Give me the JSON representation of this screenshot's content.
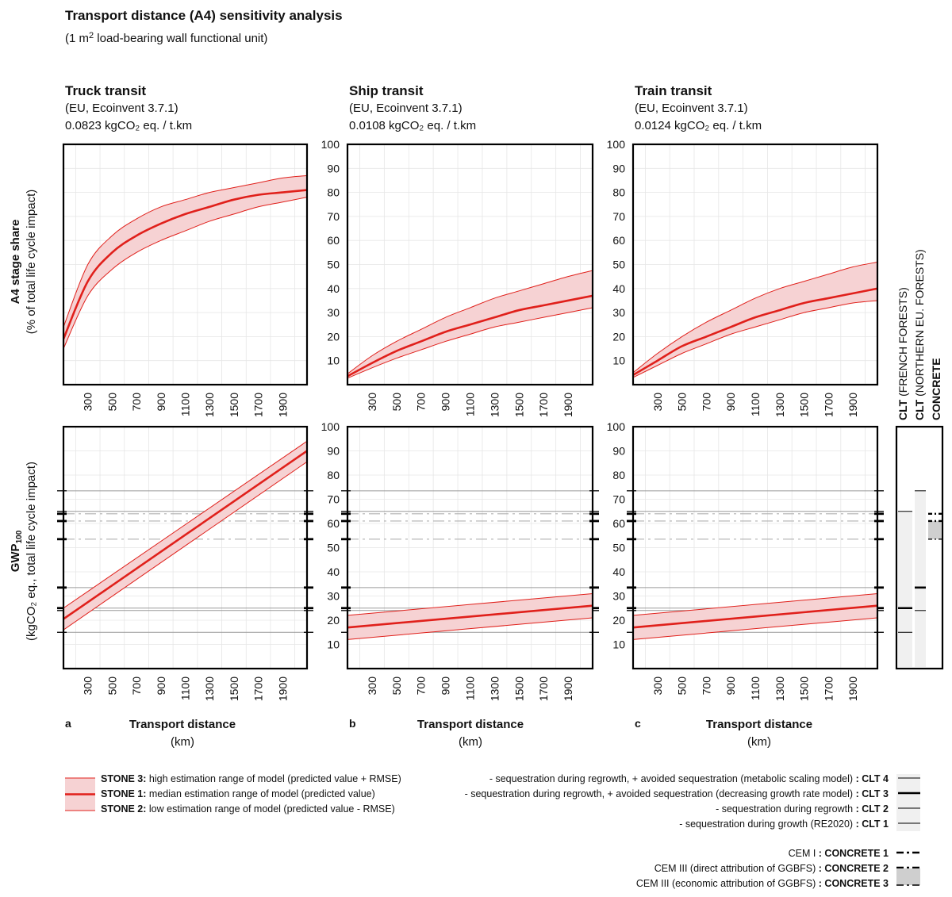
{
  "figure": {
    "title": "Transport distance (A4) sensitivity analysis",
    "subtitle_pre": "(1 m",
    "subtitle_sup": "2",
    "subtitle_post": " load-bearing wall functional unit)"
  },
  "columns": [
    {
      "title": "Truck transit",
      "source": "(EU, Ecoinvent 3.7.1)",
      "factor": "0.0823 kgCO₂ eq. / t.km",
      "letter": "a"
    },
    {
      "title": "Ship transit",
      "source": "(EU, Ecoinvent 3.7.1)",
      "factor": "0.0108 kgCO₂ eq. / t.km",
      "letter": "b"
    },
    {
      "title": "Train transit",
      "source": "(EU, Ecoinvent 3.7.1)",
      "factor": "0.0124 kgCO₂ eq. / t.km",
      "letter": "c"
    }
  ],
  "axes": {
    "row1_ylabel": "A4 stage share",
    "row1_yunit": "(% of total life cycle impact)",
    "row2_ylabel_main": "GWP",
    "row2_ylabel_sub": "100",
    "row2_yunit": "(kgCO₂ eq., total life cycle impact)",
    "xlabel": "Transport distance",
    "xunit": "(km)"
  },
  "chart_data": [
    {
      "panel": "a-top",
      "type": "area",
      "title": "Truck transit",
      "xlabel": "Transport distance (km)",
      "ylabel": "A4 stage share (% of total life cycle impact)",
      "xlim": [
        100,
        2100
      ],
      "ylim": [
        0,
        100
      ],
      "xticks": [
        300,
        500,
        700,
        900,
        1100,
        1300,
        1500,
        1700,
        1900
      ],
      "yticks": [],
      "x": [
        100,
        300,
        500,
        700,
        900,
        1100,
        1300,
        1500,
        1700,
        1900,
        2100
      ],
      "series": [
        {
          "name": "STONE 3",
          "values": [
            24,
            50,
            62,
            69,
            74,
            77,
            80,
            82,
            84,
            86,
            87
          ]
        },
        {
          "name": "STONE 1",
          "values": [
            19,
            43,
            55,
            62,
            67,
            71,
            74,
            77,
            79,
            80,
            81
          ]
        },
        {
          "name": "STONE 2",
          "values": [
            15,
            37,
            48,
            55,
            60,
            64,
            68,
            71,
            74,
            76,
            78
          ]
        }
      ]
    },
    {
      "panel": "b-top",
      "type": "area",
      "title": "Ship transit",
      "xlabel": "Transport distance (km)",
      "ylabel": "",
      "xlim": [
        100,
        2100
      ],
      "ylim": [
        0,
        100
      ],
      "xticks": [
        300,
        500,
        700,
        900,
        1100,
        1300,
        1500,
        1700,
        1900
      ],
      "yticks": [
        10,
        20,
        30,
        40,
        50,
        60,
        70,
        80,
        90,
        100
      ],
      "x": [
        100,
        300,
        500,
        700,
        900,
        1100,
        1300,
        1500,
        1700,
        1900,
        2100
      ],
      "series": [
        {
          "name": "STONE 3",
          "values": [
            4.5,
            12,
            18,
            23,
            28,
            32,
            36,
            39,
            42,
            45,
            47.5
          ]
        },
        {
          "name": "STONE 1",
          "values": [
            3.5,
            9,
            14,
            18,
            22,
            25,
            28,
            31,
            33,
            35,
            37
          ]
        },
        {
          "name": "STONE 2",
          "values": [
            2.7,
            7,
            11,
            14.5,
            18,
            21,
            24,
            26,
            28,
            30,
            32
          ]
        }
      ]
    },
    {
      "panel": "c-top",
      "type": "area",
      "title": "Train transit",
      "xlabel": "Transport distance (km)",
      "ylabel": "",
      "xlim": [
        100,
        2100
      ],
      "ylim": [
        0,
        100
      ],
      "xticks": [
        300,
        500,
        700,
        900,
        1100,
        1300,
        1500,
        1700,
        1900
      ],
      "yticks": [
        10,
        20,
        30,
        40,
        50,
        60,
        70,
        80,
        90,
        100
      ],
      "x": [
        100,
        300,
        500,
        700,
        900,
        1100,
        1300,
        1500,
        1700,
        1900,
        2100
      ],
      "series": [
        {
          "name": "STONE 3",
          "values": [
            5,
            13,
            20,
            26,
            31,
            36,
            40,
            43,
            46,
            49,
            51
          ]
        },
        {
          "name": "STONE 1",
          "values": [
            4,
            10,
            16,
            20,
            24,
            28,
            31,
            34,
            36,
            38,
            40
          ]
        },
        {
          "name": "STONE 2",
          "values": [
            3,
            8,
            13,
            17,
            21,
            24,
            27,
            30,
            32,
            34,
            35
          ]
        }
      ]
    },
    {
      "panel": "a-bottom",
      "type": "area",
      "title": "Truck transit",
      "xlabel": "Transport distance (km)",
      "ylabel": "GWP100 (kgCO2 eq., total life cycle impact)",
      "xlim": [
        100,
        2100
      ],
      "ylim": [
        0,
        100
      ],
      "xticks": [
        300,
        500,
        700,
        900,
        1100,
        1300,
        1500,
        1700,
        1900
      ],
      "yticks": [],
      "x": [
        100,
        2100
      ],
      "series": [
        {
          "name": "STONE 3",
          "values": [
            25,
            94
          ]
        },
        {
          "name": "STONE 1",
          "values": [
            20.5,
            90
          ]
        },
        {
          "name": "STONE 2",
          "values": [
            16,
            85.5
          ]
        }
      ]
    },
    {
      "panel": "b-bottom",
      "type": "area",
      "title": "Ship transit",
      "xlabel": "Transport distance (km)",
      "ylabel": "",
      "xlim": [
        100,
        2100
      ],
      "ylim": [
        0,
        100
      ],
      "xticks": [
        300,
        500,
        700,
        900,
        1100,
        1300,
        1500,
        1700,
        1900
      ],
      "yticks": [
        10,
        20,
        30,
        40,
        50,
        60,
        70,
        80,
        90,
        100
      ],
      "x": [
        100,
        2100
      ],
      "series": [
        {
          "name": "STONE 3",
          "values": [
            22,
            31
          ]
        },
        {
          "name": "STONE 1",
          "values": [
            17,
            26
          ]
        },
        {
          "name": "STONE 2",
          "values": [
            12,
            21
          ]
        }
      ]
    },
    {
      "panel": "c-bottom",
      "type": "area",
      "title": "Train transit",
      "xlabel": "Transport distance (km)",
      "ylabel": "",
      "xlim": [
        100,
        2100
      ],
      "ylim": [
        0,
        100
      ],
      "xticks": [
        300,
        500,
        700,
        900,
        1100,
        1300,
        1500,
        1700,
        1900
      ],
      "yticks": [
        10,
        20,
        30,
        40,
        50,
        60,
        70,
        80,
        90,
        100
      ],
      "x": [
        100,
        2100
      ],
      "series": [
        {
          "name": "STONE 3",
          "values": [
            22,
            31
          ]
        },
        {
          "name": "STONE 1",
          "values": [
            17,
            26
          ]
        },
        {
          "name": "STONE 2",
          "values": [
            12,
            21
          ]
        }
      ]
    }
  ],
  "reference_lines": [
    {
      "name": "CLT 4",
      "value": 73.5,
      "style": "thin-solid"
    },
    {
      "name": "CLT 3",
      "value": 33.5,
      "style": "thick-solid"
    },
    {
      "name": "CLT 2",
      "value": 24,
      "style": "thin-solid"
    },
    {
      "name": "CLT 1",
      "value": 15,
      "style": "thin-solid"
    },
    {
      "name": "CLT 1 (French)",
      "value": 25,
      "style": "thick-solid"
    },
    {
      "name": "CLT 4 (French)",
      "value": 65,
      "style": "thin-solid"
    },
    {
      "name": "CONCRETE 1",
      "value": 64,
      "style": "dash-dot"
    },
    {
      "name": "CONCRETE 2",
      "value": 61,
      "style": "dash-dot"
    },
    {
      "name": "CONCRETE 3",
      "value": 53.5,
      "style": "dash-dot"
    }
  ],
  "side_bars": {
    "labels": [
      {
        "bold": "CLT",
        "normal": " (FRENCH FORESTS)"
      },
      {
        "bold": "CLT",
        "normal": " (NORTHERN EU. FORESTS)"
      },
      {
        "bold": "CONCRETE",
        "normal": ""
      }
    ]
  },
  "legend_stone": [
    {
      "bold": "STONE 3:",
      "text": " high estimation range of model (predicted value + RMSE)"
    },
    {
      "bold": "STONE 1:",
      "text": " median estimation range of model (predicted value)"
    },
    {
      "bold": "STONE 2:",
      "text": " low estimation range of model (predicted value - RMSE)"
    }
  ],
  "legend_clt": [
    {
      "text": "- sequestration during regrowth, + avoided sequestration (metabolic scaling model) ",
      "bold": ": CLT 4"
    },
    {
      "text": "- sequestration during regrowth, + avoided sequestration (decreasing growth rate model) ",
      "bold": ": CLT 3"
    },
    {
      "text": "- sequestration during regrowth ",
      "bold": ": CLT 2"
    },
    {
      "text": "- sequestration during growth (RE2020) ",
      "bold": ": CLT 1"
    }
  ],
  "legend_concrete": [
    {
      "text": "CEM I ",
      "bold": ": CONCRETE 1"
    },
    {
      "text": "CEM III (direct attribution of GGBFS) ",
      "bold": ": CONCRETE 2"
    },
    {
      "text": "CEM III (economic attribution of GGBFS) ",
      "bold": ": CONCRETE 3"
    }
  ],
  "colors": {
    "accent": "#e0201b",
    "band": "#f6d2d3",
    "grey_fill": "#cfcfcf",
    "light_fill": "#f0f0f0"
  }
}
